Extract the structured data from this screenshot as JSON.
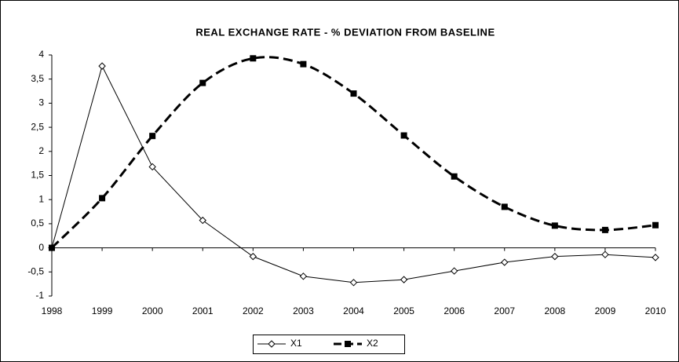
{
  "chart_data": {
    "type": "line",
    "title": "REAL EXCHANGE RATE - % DEVIATION FROM BASELINE",
    "x": [
      1998,
      1999,
      2000,
      2001,
      2002,
      2003,
      2004,
      2005,
      2006,
      2007,
      2008,
      2009,
      2010
    ],
    "xlim": [
      1998,
      2010
    ],
    "xticks": [
      1998,
      1999,
      2000,
      2001,
      2002,
      2003,
      2004,
      2005,
      2006,
      2007,
      2008,
      2009,
      2010
    ],
    "ylim": [
      -1,
      4
    ],
    "yticks": [
      {
        "value": -1,
        "label": "-1"
      },
      {
        "value": -0.5,
        "label": "-0,5"
      },
      0,
      {
        "value": 0.5,
        "label": "0,5"
      },
      1,
      {
        "value": 1.5,
        "label": "1,5"
      },
      2,
      {
        "value": 2.5,
        "label": "2,5"
      },
      3,
      {
        "value": 3.5,
        "label": "3,5"
      },
      4
    ],
    "grid": false,
    "legend": "bottom",
    "series": [
      {
        "name": "X1",
        "color": "#000000",
        "marker": "diamond",
        "smooth": false,
        "dashed": false,
        "values": [
          0,
          3.77,
          1.68,
          0.57,
          -0.18,
          -0.59,
          -0.72,
          -0.66,
          -0.48,
          -0.3,
          -0.18,
          -0.14,
          -0.2
        ]
      },
      {
        "name": "X2",
        "color": "#000000",
        "marker": "square",
        "smooth": true,
        "dashed": true,
        "values": [
          0,
          1.03,
          2.32,
          3.42,
          3.93,
          3.81,
          3.2,
          2.33,
          1.48,
          0.85,
          0.46,
          0.37,
          0.47
        ]
      }
    ]
  }
}
